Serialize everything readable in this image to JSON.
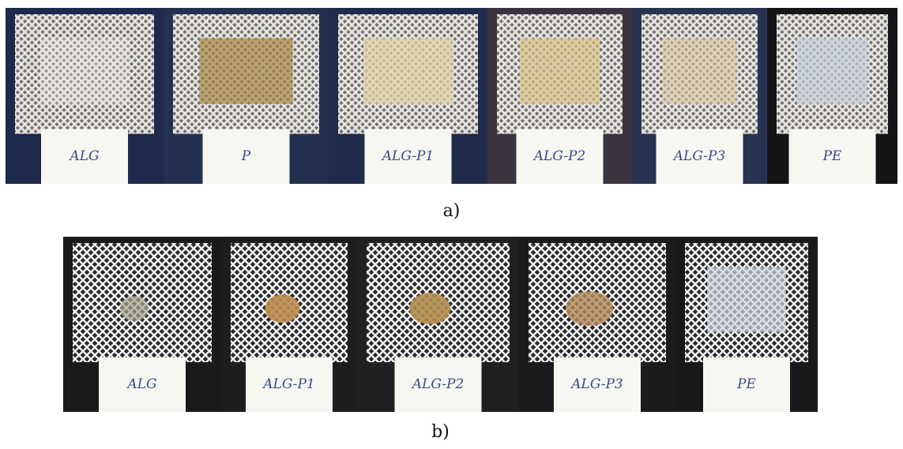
{
  "panels": [
    {
      "caption": "a)",
      "samples": [
        "ALG",
        "P",
        "ALG-P1",
        "ALG-P2",
        "ALG-P3",
        "PE"
      ]
    },
    {
      "caption": "b)",
      "samples": [
        "ALG",
        "ALG-P1",
        "ALG-P2",
        "ALG-P3",
        "PE"
      ]
    }
  ]
}
